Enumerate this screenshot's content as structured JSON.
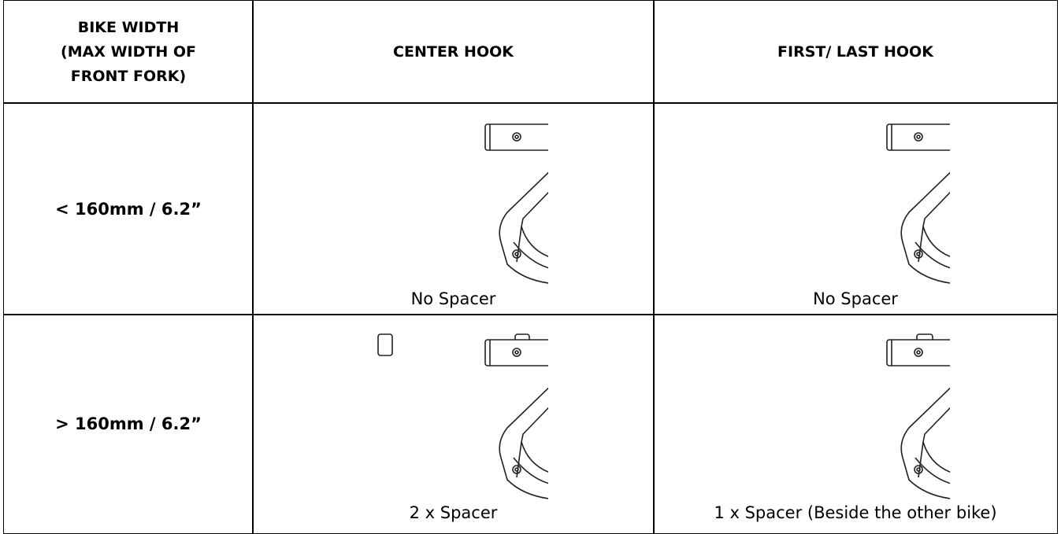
{
  "table": {
    "header": {
      "col1": [
        "BIKE WIDTH",
        "(MAX WIDTH OF",
        "FRONT FORK)"
      ],
      "col2": "CENTER HOOK",
      "col3": "FIRST/ LAST HOOK"
    },
    "rows": [
      {
        "width": "< 160mm / 6.2”",
        "center": "No Spacer",
        "first_last": "No Spacer"
      },
      {
        "width": "> 160mm / 6.2”",
        "center": "2 x Spacer",
        "first_last": "1 x Spacer (Beside the other bike)"
      }
    ]
  }
}
